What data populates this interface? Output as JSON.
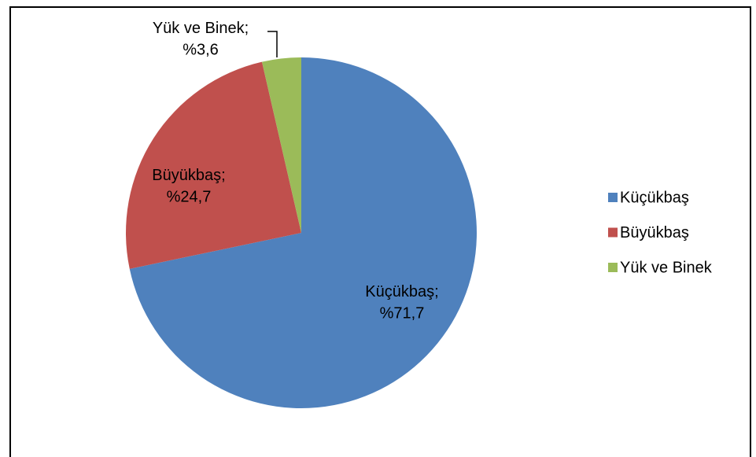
{
  "chart_data": {
    "type": "pie",
    "categories": [
      "Küçükbaş",
      "Büyükbaş",
      "Yük ve Binek"
    ],
    "values": [
      71.7,
      24.7,
      3.6
    ],
    "value_labels": [
      "%71,7",
      "%24,7",
      "%3,6"
    ],
    "label_separator": ";",
    "colors": [
      "#4f81bd",
      "#c0504d",
      "#9bbb59"
    ],
    "legend": "right"
  }
}
